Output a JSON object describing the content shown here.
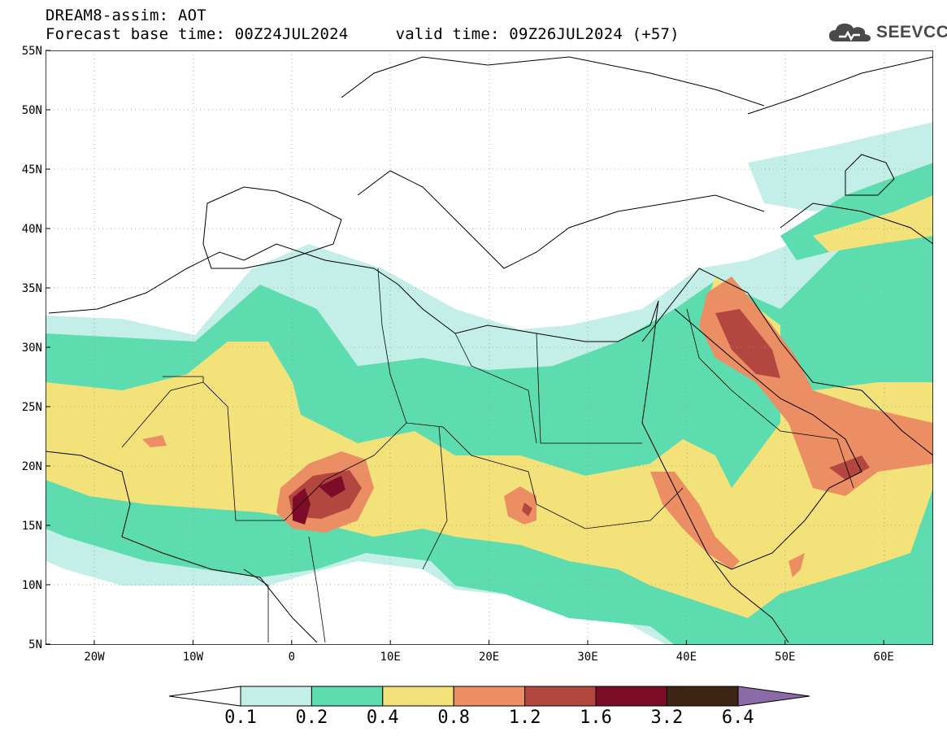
{
  "header": {
    "line1": "DREAM8-assim: AOT",
    "line2": "Forecast base time: 00Z24JUL2024     valid time: 09Z26JUL2024 (+57)"
  },
  "logo": {
    "text": "SEEVCCC",
    "icon": "cloud-icon"
  },
  "map": {
    "region": {
      "lon": [
        -25,
        65
      ],
      "lat": [
        5,
        55
      ]
    },
    "lat_labels": [
      "55N",
      "50N",
      "45N",
      "40N",
      "35N",
      "30N",
      "25N",
      "20N",
      "15N",
      "10N",
      "5N"
    ],
    "lon_labels": [
      "20W",
      "10W",
      "0",
      "10E",
      "20E",
      "30E",
      "40E",
      "50E",
      "60E"
    ],
    "grid": "dotted"
  },
  "colorbar": {
    "ticks": [
      "0.1",
      "0.2",
      "0.4",
      "0.8",
      "1.2",
      "1.6",
      "3.2",
      "6.4"
    ],
    "colors": [
      "#ffffff",
      "#c4efe9",
      "#5ddcaf",
      "#f3e27a",
      "#ec8e63",
      "#b3473f",
      "#7e0b27",
      "#3e2514",
      "#8c6aa8"
    ]
  }
}
